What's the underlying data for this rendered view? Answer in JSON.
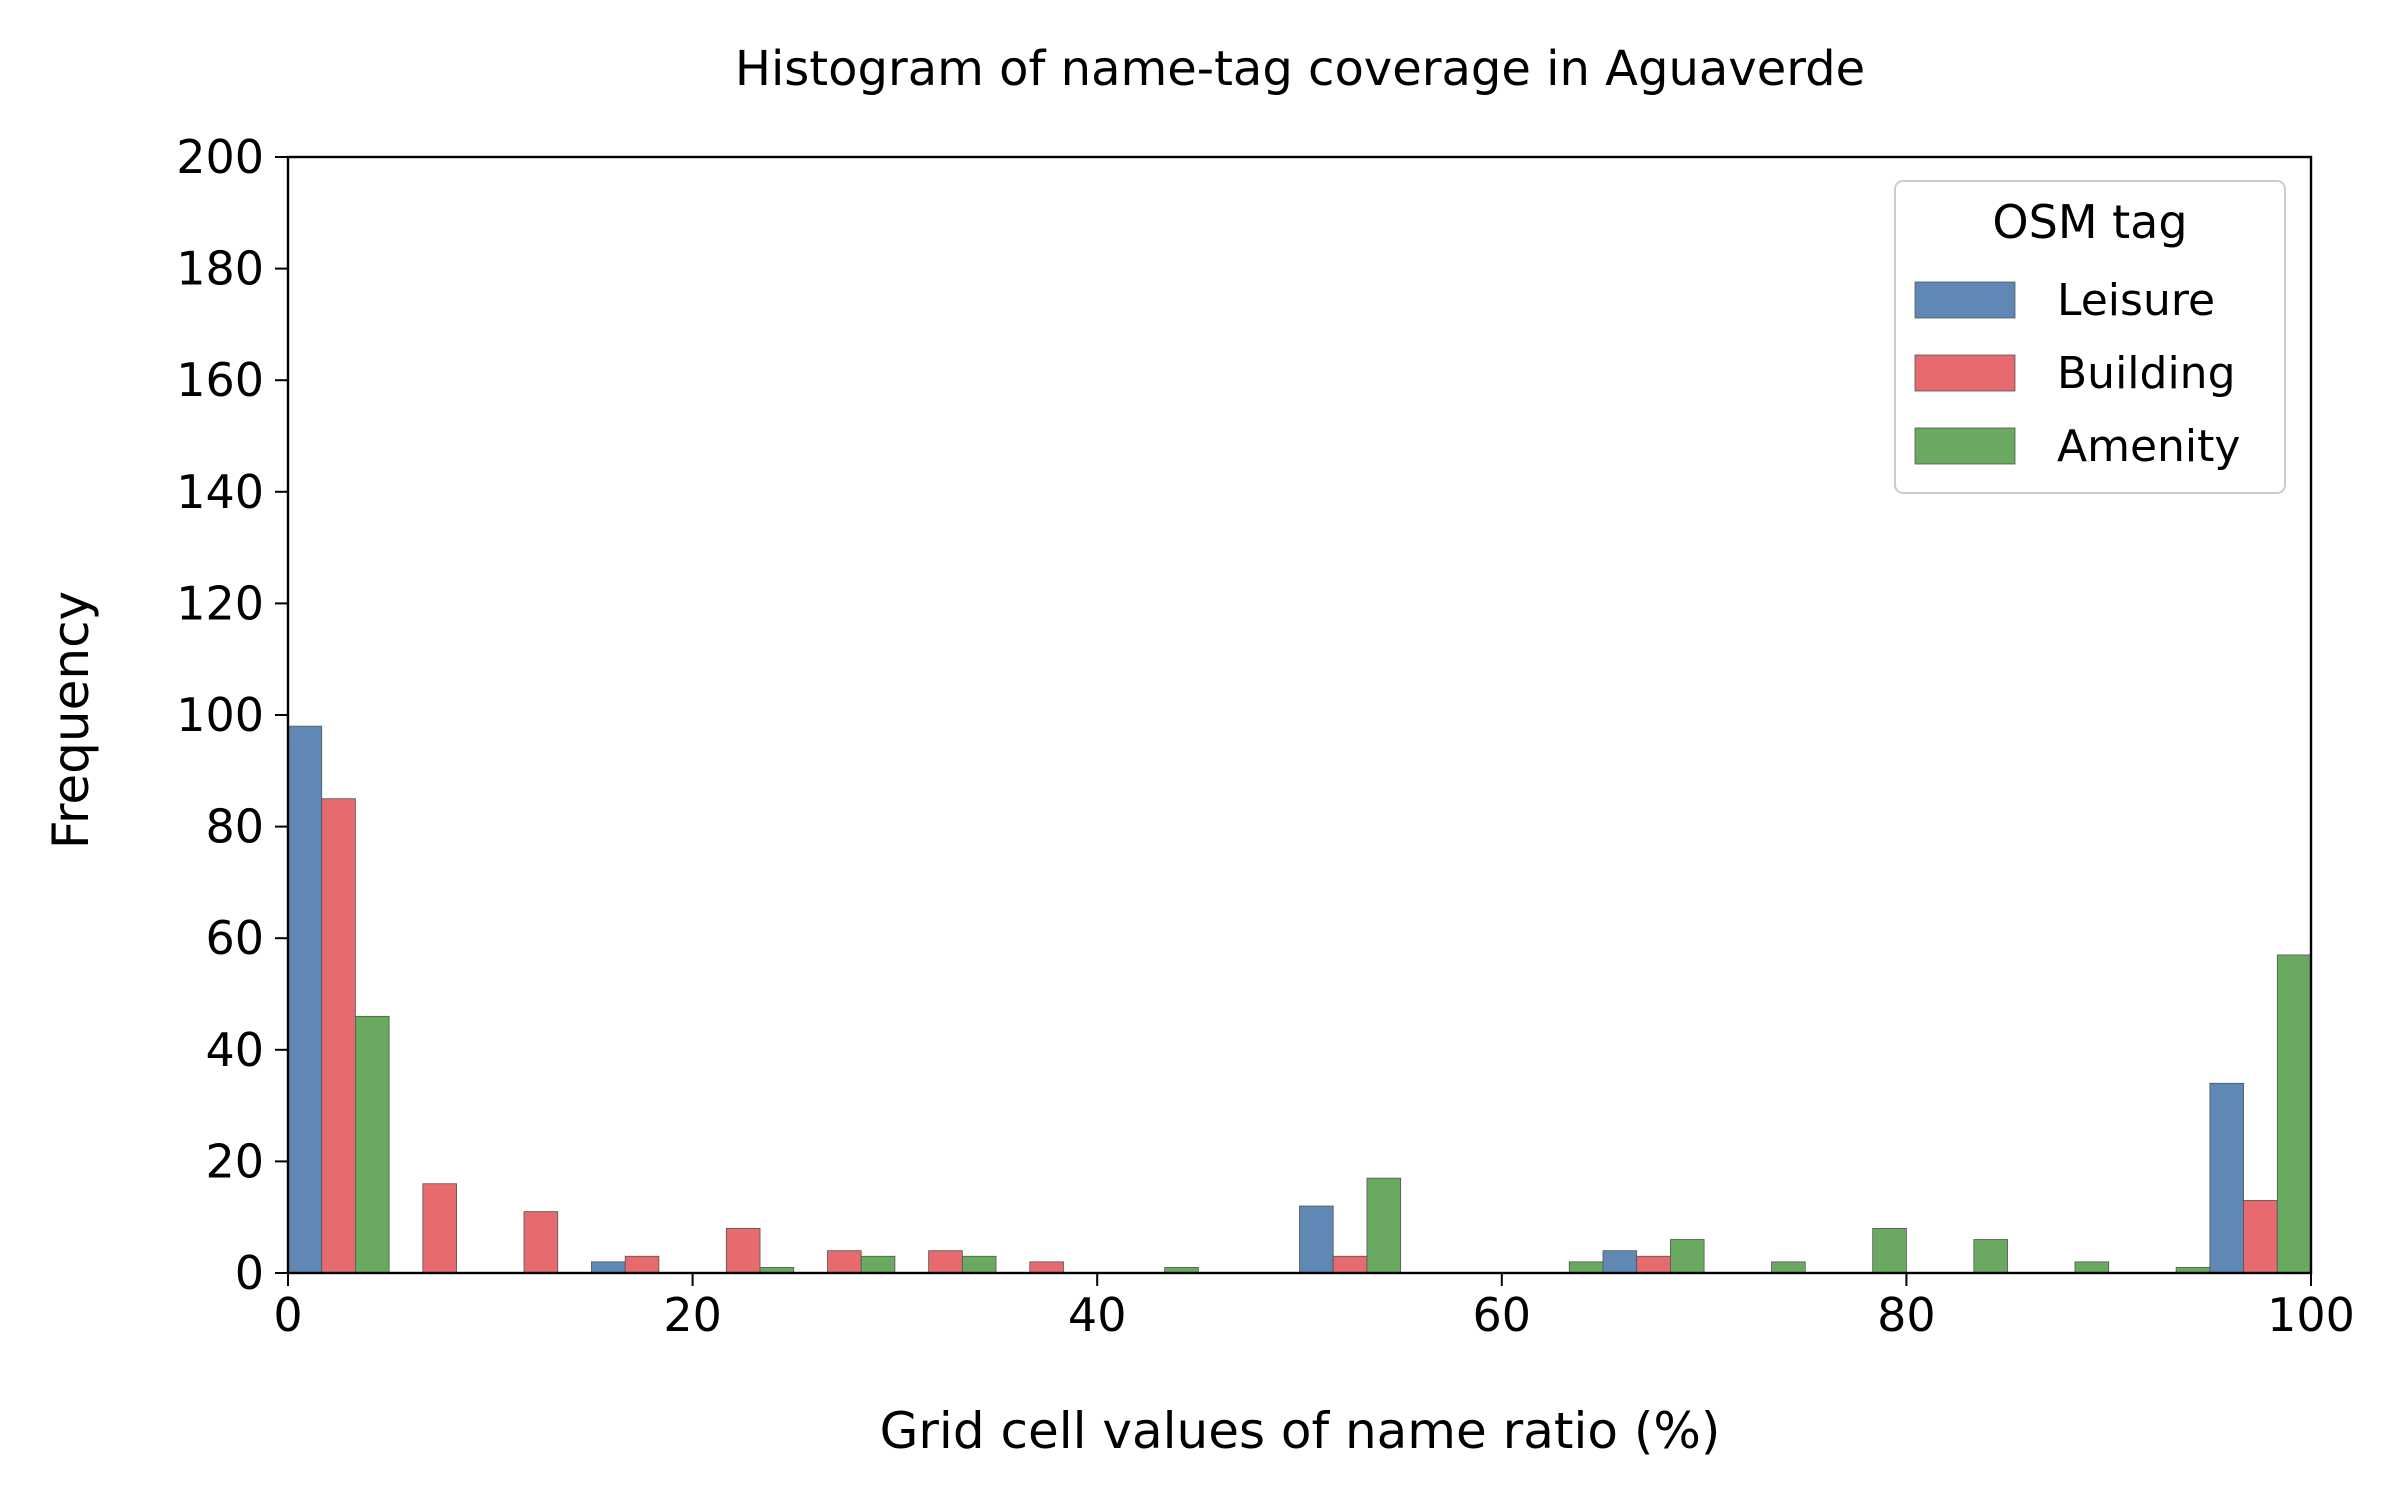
{
  "chart_data": {
    "type": "bar",
    "title": "Histogram of name-tag coverage in Aguaverde",
    "xlabel": "Grid cell values of name ratio (%)",
    "ylabel": "Frequency",
    "xlim": [
      0,
      100
    ],
    "ylim": [
      0,
      200
    ],
    "xticks": [
      0,
      20,
      40,
      60,
      80,
      100
    ],
    "yticks": [
      0,
      20,
      40,
      60,
      80,
      100,
      120,
      140,
      160,
      180,
      200
    ],
    "bin_width": 5,
    "bins": [
      [
        0,
        5
      ],
      [
        5,
        10
      ],
      [
        10,
        15
      ],
      [
        15,
        20
      ],
      [
        20,
        25
      ],
      [
        25,
        30
      ],
      [
        30,
        35
      ],
      [
        35,
        40
      ],
      [
        40,
        45
      ],
      [
        45,
        50
      ],
      [
        50,
        55
      ],
      [
        55,
        60
      ],
      [
        60,
        65
      ],
      [
        65,
        70
      ],
      [
        70,
        75
      ],
      [
        75,
        80
      ],
      [
        80,
        85
      ],
      [
        85,
        90
      ],
      [
        90,
        95
      ],
      [
        95,
        100
      ]
    ],
    "series": [
      {
        "name": "Leisure",
        "color": "#6088b4",
        "values": [
          98,
          0,
          0,
          2,
          0,
          0,
          0,
          0,
          0,
          0,
          12,
          0,
          0,
          4,
          0,
          0,
          0,
          0,
          0,
          34
        ]
      },
      {
        "name": "Building",
        "color": "#e66a6e",
        "values": [
          85,
          16,
          11,
          3,
          8,
          4,
          4,
          2,
          0,
          0,
          3,
          0,
          0,
          3,
          0,
          0,
          0,
          0,
          0,
          13
        ]
      },
      {
        "name": "Amenity",
        "color": "#6aaa60",
        "values": [
          46,
          0,
          0,
          0,
          1,
          3,
          3,
          0,
          1,
          0,
          17,
          0,
          2,
          6,
          2,
          8,
          6,
          2,
          1,
          57
        ]
      }
    ],
    "legend": {
      "title": "OSM tag",
      "position": "top-right"
    },
    "grid": false
  }
}
